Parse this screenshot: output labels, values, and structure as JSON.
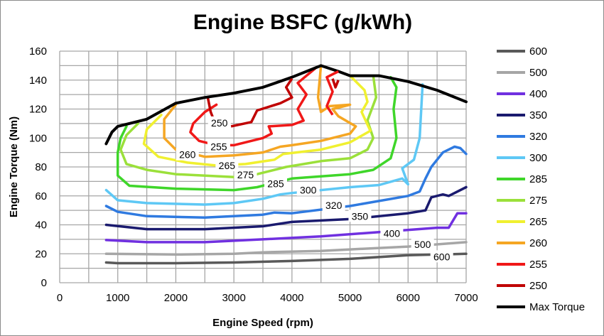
{
  "chart_data": {
    "type": "line",
    "title": "Engine BSFC (g/kWh)",
    "xlabel": "Engine Speed (rpm)",
    "ylabel": "Engine Torque (Nm)",
    "xlim": [
      0,
      7000
    ],
    "ylim": [
      0,
      160
    ],
    "xticks": [
      "0",
      "1000",
      "2000",
      "3000",
      "4000",
      "5000",
      "6000",
      "7000"
    ],
    "yticks": [
      "0",
      "20",
      "40",
      "60",
      "80",
      "100",
      "120",
      "140",
      "160"
    ],
    "grid": true,
    "legend_position": "right",
    "series": [
      {
        "name": "600",
        "color": "#595959",
        "label": "600",
        "label_at": [
          6580,
          18
        ],
        "points": [
          [
            800,
            14
          ],
          [
            1000,
            13.5
          ],
          [
            2000,
            13.5
          ],
          [
            3000,
            14
          ],
          [
            4000,
            15
          ],
          [
            5000,
            16.5
          ],
          [
            6000,
            19
          ],
          [
            7000,
            20
          ]
        ]
      },
      {
        "name": "500",
        "color": "#a6a6a6",
        "label": "500",
        "label_at": [
          6250,
          26.5
        ],
        "points": [
          [
            800,
            20
          ],
          [
            2000,
            19.5
          ],
          [
            3000,
            20
          ],
          [
            3500,
            21
          ],
          [
            4500,
            22
          ],
          [
            5000,
            23
          ],
          [
            6000,
            25
          ],
          [
            7000,
            28
          ]
        ]
      },
      {
        "name": "400",
        "color": "#7030e0",
        "label": "400",
        "label_at": [
          5720,
          34
        ],
        "points": [
          [
            800,
            29.5
          ],
          [
            1500,
            28
          ],
          [
            2500,
            28
          ],
          [
            3500,
            30
          ],
          [
            4500,
            32
          ],
          [
            5500,
            35
          ],
          [
            6500,
            38
          ],
          [
            6700,
            38
          ],
          [
            6850,
            48
          ],
          [
            7000,
            48
          ]
        ]
      },
      {
        "name": "350",
        "color": "#1a1a6e",
        "label": "350",
        "label_at": [
          5170,
          46
        ],
        "points": [
          [
            800,
            40
          ],
          [
            1500,
            37
          ],
          [
            2500,
            37
          ],
          [
            3500,
            39
          ],
          [
            4000,
            42
          ],
          [
            5000,
            44
          ],
          [
            6000,
            48
          ],
          [
            6300,
            50
          ],
          [
            6400,
            59
          ],
          [
            6600,
            61
          ],
          [
            6700,
            60
          ],
          [
            7000,
            66
          ]
        ]
      },
      {
        "name": "320",
        "color": "#2f7ae0",
        "label": "320",
        "label_at": [
          4720,
          53.5
        ],
        "points": [
          [
            800,
            53
          ],
          [
            1000,
            49
          ],
          [
            1500,
            46
          ],
          [
            2500,
            45
          ],
          [
            3500,
            47
          ],
          [
            3700,
            48.5
          ],
          [
            4000,
            48
          ],
          [
            5000,
            53
          ],
          [
            6000,
            60
          ],
          [
            6200,
            63
          ],
          [
            6300,
            72
          ],
          [
            6400,
            80
          ],
          [
            6600,
            90
          ],
          [
            6800,
            94
          ],
          [
            6900,
            93
          ],
          [
            7000,
            89
          ]
        ]
      },
      {
        "name": "300",
        "color": "#5ec8f5",
        "label": "300",
        "label_at": [
          4280,
          64
        ],
        "points": [
          [
            800,
            64
          ],
          [
            1000,
            57
          ],
          [
            1500,
            55
          ],
          [
            2500,
            54
          ],
          [
            3000,
            55
          ],
          [
            3500,
            58
          ],
          [
            3800,
            61
          ],
          [
            4000,
            62
          ],
          [
            5000,
            66
          ],
          [
            5500,
            67.5
          ],
          [
            5900,
            72
          ],
          [
            6000,
            68
          ],
          [
            5900,
            79
          ],
          [
            6100,
            85
          ],
          [
            6200,
            100
          ],
          [
            6250,
            137
          ]
        ]
      },
      {
        "name": "285",
        "color": "#3fd62a",
        "label": "285",
        "label_at": [
          3720,
          68.5
        ],
        "points": [
          [
            1150,
            108
          ],
          [
            1050,
            100
          ],
          [
            1000,
            90
          ],
          [
            1000,
            74
          ],
          [
            1200,
            67
          ],
          [
            2000,
            65
          ],
          [
            3000,
            64
          ],
          [
            3400,
            66
          ],
          [
            4000,
            72
          ],
          [
            5000,
            75
          ],
          [
            5400,
            78
          ],
          [
            5700,
            86
          ],
          [
            5800,
            100
          ],
          [
            5750,
            120
          ],
          [
            5800,
            135
          ],
          [
            5700,
            142
          ]
        ]
      },
      {
        "name": "275",
        "color": "#9be03a",
        "label": "275",
        "label_at": [
          3200,
          74.5
        ],
        "points": [
          [
            1350,
            110
          ],
          [
            1150,
            102
          ],
          [
            1050,
            92
          ],
          [
            1150,
            82
          ],
          [
            1500,
            78
          ],
          [
            2000,
            75
          ],
          [
            3000,
            73
          ],
          [
            3400,
            75
          ],
          [
            3900,
            80
          ],
          [
            4500,
            84
          ],
          [
            5000,
            86
          ],
          [
            5300,
            92
          ],
          [
            5400,
            100
          ],
          [
            5300,
            112
          ],
          [
            5450,
            128
          ],
          [
            5400,
            143
          ]
        ]
      },
      {
        "name": "265",
        "color": "#f0f030",
        "label": "265",
        "label_at": [
          2880,
          81
        ],
        "points": [
          [
            1750,
            116
          ],
          [
            1500,
            106
          ],
          [
            1450,
            96
          ],
          [
            1700,
            87
          ],
          [
            2200,
            83
          ],
          [
            2700,
            81
          ],
          [
            3200,
            82
          ],
          [
            3700,
            85
          ],
          [
            3850,
            89
          ],
          [
            4500,
            92
          ],
          [
            5000,
            97
          ],
          [
            5350,
            105
          ],
          [
            5200,
            118
          ],
          [
            5300,
            125
          ],
          [
            5250,
            133
          ],
          [
            5000,
            143
          ]
        ]
      },
      {
        "name": "260",
        "color": "#f5a623",
        "label": "260",
        "label_at": [
          2200,
          88.5
        ],
        "points": [
          [
            2000,
            123
          ],
          [
            1800,
            113
          ],
          [
            1800,
            100
          ],
          [
            2000,
            92
          ],
          [
            2500,
            87
          ],
          [
            3000,
            88
          ],
          [
            3500,
            90
          ],
          [
            3800,
            94
          ],
          [
            4000,
            95
          ],
          [
            4500,
            98
          ],
          [
            5000,
            103
          ],
          [
            5100,
            108
          ],
          [
            4800,
            115
          ],
          [
            4700,
            120
          ],
          [
            5000,
            123
          ],
          [
            4650,
            122
          ],
          [
            4500,
            118
          ],
          [
            4450,
            128
          ],
          [
            4500,
            150
          ]
        ]
      },
      {
        "name": "255",
        "color": "#f01818",
        "label": "255",
        "label_at": [
          2740,
          94
        ],
        "points": [
          [
            2700,
            123
          ],
          [
            2500,
            118
          ],
          [
            2300,
            110
          ],
          [
            2250,
            104
          ],
          [
            2400,
            98
          ],
          [
            2700,
            95
          ],
          [
            3000,
            95
          ],
          [
            3500,
            100
          ],
          [
            3650,
            103
          ],
          [
            3600,
            108
          ],
          [
            4000,
            109
          ],
          [
            4200,
            112
          ],
          [
            4100,
            120
          ],
          [
            4250,
            130
          ],
          [
            4100,
            138
          ],
          [
            4400,
            148
          ]
        ]
      },
      {
        "name": "250",
        "color": "#c00000",
        "label": "250",
        "label_at": [
          2750,
          110.5
        ],
        "points": [
          [
            2550,
            128
          ],
          [
            2600,
            118
          ],
          [
            2650,
            113
          ]
        ]
      },
      {
        "name": "Max Torque",
        "color": "#000000",
        "points": [
          [
            800,
            96
          ],
          [
            900,
            104
          ],
          [
            1000,
            108
          ],
          [
            1500,
            113
          ],
          [
            2000,
            124
          ],
          [
            2500,
            128
          ],
          [
            3000,
            131
          ],
          [
            3500,
            135
          ],
          [
            4000,
            142
          ],
          [
            4500,
            150
          ],
          [
            4800,
            146
          ],
          [
            5000,
            143
          ],
          [
            5500,
            143
          ],
          [
            6000,
            139
          ],
          [
            6500,
            133
          ],
          [
            7000,
            125
          ]
        ]
      }
    ],
    "extra_segments": [
      {
        "series": "250",
        "points": [
          [
            2950,
            108
          ],
          [
            3300,
            111
          ],
          [
            3400,
            119
          ],
          [
            3800,
            124
          ],
          [
            4000,
            128
          ],
          [
            3900,
            135
          ],
          [
            4000,
            141
          ]
        ]
      },
      {
        "series": "255",
        "points": [
          [
            4700,
            116
          ],
          [
            4600,
            122
          ],
          [
            4700,
            132
          ],
          [
            4600,
            142
          ],
          [
            4800,
            146
          ]
        ]
      },
      {
        "series": "250",
        "points": [
          [
            4700,
            141
          ],
          [
            4750,
            135
          ],
          [
            4800,
            140
          ]
        ]
      }
    ]
  }
}
